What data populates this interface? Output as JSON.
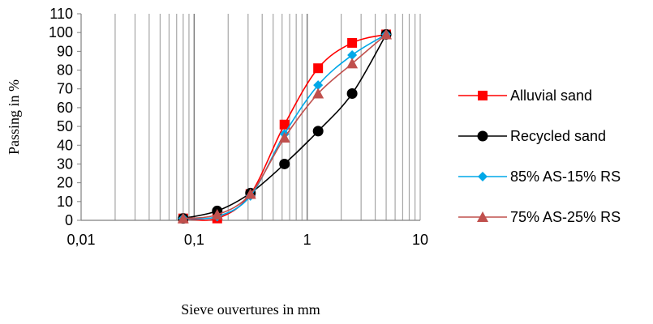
{
  "chart_data": {
    "type": "scatter",
    "xscale": "log",
    "xlim": [
      0.01,
      10
    ],
    "ylim": [
      0,
      110
    ],
    "xticks": [
      0.01,
      0.1,
      1,
      10
    ],
    "xtick_labels": [
      "0,01",
      "0,1",
      "1",
      "10"
    ],
    "yticks": [
      0,
      10,
      20,
      30,
      40,
      50,
      60,
      70,
      80,
      90,
      100,
      110
    ],
    "ytick_labels": [
      "0",
      "10",
      "20",
      "30",
      "40",
      "50",
      "60",
      "70",
      "80",
      "90",
      "100",
      "110"
    ],
    "xlabel": "Sieve ouvertures in mm",
    "ylabel": "Passing in %",
    "grid": "vertical minor and major on log x-axis",
    "legend_position": "right",
    "series": [
      {
        "name": "Alluvial sand",
        "color": "#ff0000",
        "marker": "square",
        "x": [
          0.08,
          0.16,
          0.315,
          0.63,
          1.25,
          2.5,
          5
        ],
        "y": [
          1,
          1,
          14,
          51,
          81,
          94.5,
          99
        ]
      },
      {
        "name": "Recycled sand",
        "color": "#000000",
        "marker": "circle",
        "x": [
          0.08,
          0.16,
          0.315,
          0.63,
          1.25,
          2.5,
          5
        ],
        "y": [
          1,
          5,
          14.5,
          30,
          47.5,
          67.5,
          99
        ]
      },
      {
        "name": "85% AS-15% RS",
        "color": "#00a8e8",
        "marker": "diamond",
        "x": [
          0.08,
          0.16,
          0.315,
          0.63,
          1.25,
          2.5,
          5
        ],
        "y": [
          1,
          2,
          13,
          46,
          72,
          88,
          99
        ]
      },
      {
        "name": "75% AS-25% RS",
        "color": "#c0504d",
        "marker": "triangle",
        "x": [
          0.08,
          0.16,
          0.315,
          0.63,
          1.25,
          2.5,
          5
        ],
        "y": [
          1,
          3,
          14,
          44,
          67.5,
          83.5,
          99
        ]
      }
    ]
  }
}
